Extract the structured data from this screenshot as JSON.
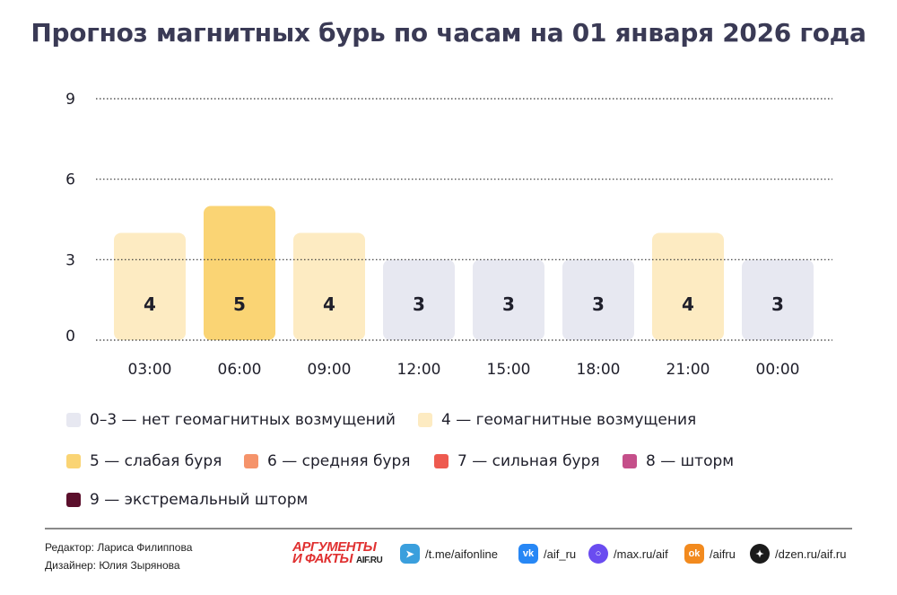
{
  "title": "Прогноз магнитных бурь по часам на 01 января 2026 года",
  "chart_data": {
    "type": "bar",
    "categories": [
      "03:00",
      "06:00",
      "09:00",
      "12:00",
      "15:00",
      "18:00",
      "21:00",
      "00:00"
    ],
    "values": [
      4,
      5,
      4,
      3,
      3,
      3,
      4,
      3
    ],
    "yticks": [
      0,
      3,
      6,
      9
    ],
    "ylim": [
      0,
      9
    ],
    "grid": "horizontal dotted",
    "legend_placement": "bottom",
    "level_colors": {
      "3": "#e7e8f1",
      "4": "#fdebc2",
      "5": "#fad474",
      "6": "#f5936a",
      "7": "#ee5a4f",
      "8": "#c54f8a",
      "9": "#5b0f2c"
    }
  },
  "legend": [
    {
      "label": "0–3 — нет геомагнитных возмущений",
      "color": "#e7e8f1"
    },
    {
      "label": "4 — геомагнитные возмущения",
      "color": "#fdebc2"
    },
    {
      "label": "5 — слабая буря",
      "color": "#fad474"
    },
    {
      "label": "6 — средняя буря",
      "color": "#f5936a"
    },
    {
      "label": "7 — сильная буря",
      "color": "#ee5a4f"
    },
    {
      "label": "8 — шторм",
      "color": "#c54f8a"
    },
    {
      "label": "9 — экстремальный шторм",
      "color": "#5b0f2c"
    }
  ],
  "footer": {
    "editor": "Редактор: Лариса Филиппова",
    "designer": "Дизайнер: Юлия Зырянова",
    "logo_line1": "АРГУМЕНТЫ",
    "logo_line2": "И ФАКТЫ",
    "logo_small": "AIF.RU",
    "social": [
      {
        "icon": "telegram-icon",
        "text": "/t.me/aifonline",
        "color": "#3a9fdd"
      },
      {
        "icon": "vk-icon",
        "text": "/aif_ru",
        "color": "#2787f5"
      },
      {
        "icon": "max-icon",
        "text": "/max.ru/aif",
        "color": "#6a4cf0"
      },
      {
        "icon": "odnoklassniki-icon",
        "text": "/aifru",
        "color": "#f28a1e"
      },
      {
        "icon": "dzen-icon",
        "text": "/dzen.ru/aif.ru",
        "color": "#1b1b1b"
      }
    ]
  }
}
